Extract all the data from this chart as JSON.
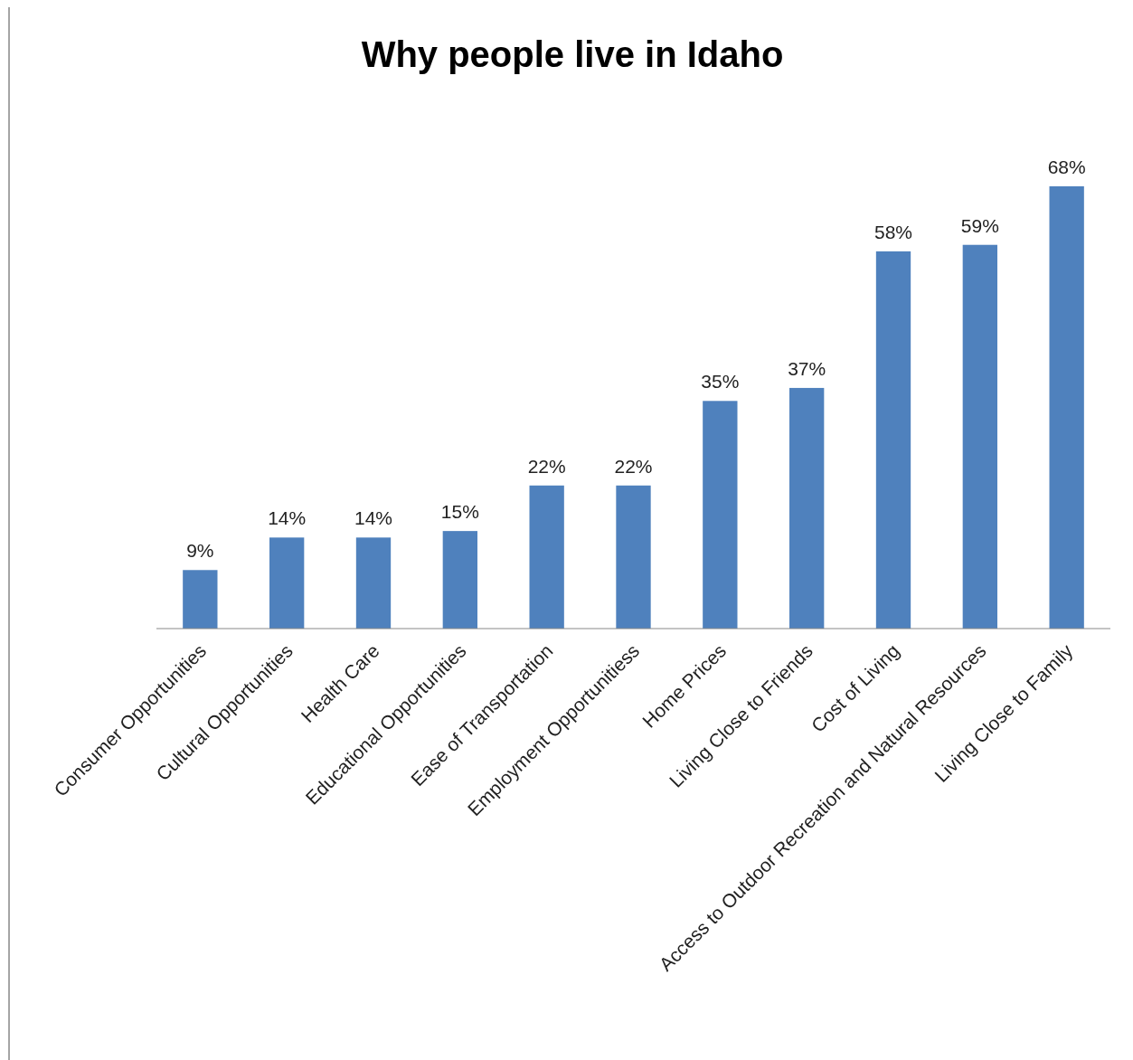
{
  "chart_data": {
    "type": "bar",
    "title": "Why people live in Idaho",
    "categories": [
      "Consumer Opportunities",
      "Cultural Opportunities",
      "Health Care",
      "Educational Opportunities",
      "Ease of Transportation",
      "Employment Opportunitiess",
      "Home Prices",
      "Living Close to Friends",
      "Cost of Living",
      "Access to Outdoor Recreation and Natural Resources",
      "Living Close to Family"
    ],
    "values": [
      9,
      14,
      14,
      15,
      22,
      22,
      35,
      37,
      58,
      59,
      68
    ],
    "value_labels": [
      "9%",
      "14%",
      "14%",
      "15%",
      "22%",
      "22%",
      "35%",
      "37%",
      "58%",
      "59%",
      "68%"
    ],
    "color": "#4f81bd"
  }
}
